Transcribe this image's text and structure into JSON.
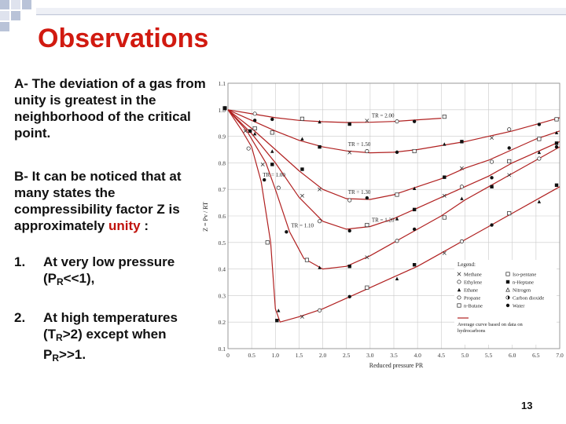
{
  "slide": {
    "title": "Observations",
    "para_a": "A- The deviation of a gas from unity is greatest in the neighborhood of the critical point.",
    "para_b_main": "B- It can be noticed that at many states the compressibility factor Z is approximately",
    "para_b_highlight": "unity",
    "para_b_end": ":",
    "item1": {
      "num": "1.",
      "text": "At very low pressure (P",
      "sub": "R",
      "end": "<<1),"
    },
    "item2": {
      "num": "2.",
      "text_a": "At high temperatures (T",
      "sub_a": "R",
      "text_b": ">2) except when P",
      "sub_b": "R",
      "end": ">>1."
    },
    "page_number": "13",
    "colors": {
      "title": "#d11a10",
      "curve": "#b02020",
      "highlight": "#c0120c"
    }
  },
  "chart_data": {
    "type": "scatter",
    "xlabel": "Reduced pressure PR",
    "ylabel": "Z = Pv / RT",
    "xlim": [
      0,
      7.0
    ],
    "ylim": [
      0.1,
      1.1
    ],
    "xticks": [
      "0",
      "0.5",
      "1.0",
      "1.5",
      "2.0",
      "2.5",
      "3.0",
      "3.5",
      "4.0",
      "4.5",
      "5.0",
      "5.5",
      "6.0",
      "6.5",
      "7.0"
    ],
    "yticks": [
      "0.1",
      "0.2",
      "0.3",
      "0.4",
      "0.5",
      "0.6",
      "0.7",
      "0.8",
      "0.9",
      "1.0",
      "1.1"
    ],
    "curves": [
      {
        "label": "TR = 2.00",
        "points": [
          [
            0,
            1.0
          ],
          [
            0.5,
            0.985
          ],
          [
            1,
            0.97
          ],
          [
            1.5,
            0.96
          ],
          [
            2,
            0.955
          ],
          [
            2.5,
            0.952
          ],
          [
            3,
            0.953
          ],
          [
            3.5,
            0.956
          ],
          [
            4,
            0.962
          ],
          [
            4.5,
            0.968
          ]
        ]
      },
      {
        "label": "TR = 1.50",
        "points": [
          [
            0,
            1.0
          ],
          [
            0.5,
            0.96
          ],
          [
            1,
            0.92
          ],
          [
            1.5,
            0.885
          ],
          [
            2,
            0.86
          ],
          [
            2.5,
            0.845
          ],
          [
            3,
            0.838
          ],
          [
            3.5,
            0.84
          ],
          [
            4,
            0.85
          ],
          [
            4.5,
            0.865
          ],
          [
            5,
            0.88
          ],
          [
            5.5,
            0.9
          ],
          [
            6,
            0.92
          ],
          [
            6.5,
            0.945
          ],
          [
            7,
            0.97
          ]
        ]
      },
      {
        "label": "TR = 1.30",
        "points": [
          [
            0,
            1.0
          ],
          [
            0.5,
            0.93
          ],
          [
            1,
            0.85
          ],
          [
            1.5,
            0.77
          ],
          [
            2,
            0.7
          ],
          [
            2.5,
            0.665
          ],
          [
            3,
            0.662
          ],
          [
            3.5,
            0.68
          ],
          [
            4,
            0.71
          ],
          [
            4.5,
            0.74
          ],
          [
            5,
            0.78
          ],
          [
            5.5,
            0.81
          ],
          [
            6,
            0.85
          ],
          [
            6.5,
            0.89
          ],
          [
            7,
            0.92
          ]
        ]
      },
      {
        "label": "TR = 1.20",
        "points": [
          [
            0,
            1.0
          ],
          [
            0.5,
            0.91
          ],
          [
            1,
            0.8
          ],
          [
            1.5,
            0.67
          ],
          [
            2,
            0.58
          ],
          [
            2.5,
            0.55
          ],
          [
            3,
            0.56
          ],
          [
            3.5,
            0.59
          ],
          [
            4,
            0.63
          ],
          [
            4.5,
            0.67
          ],
          [
            5,
            0.71
          ],
          [
            5.5,
            0.75
          ],
          [
            6,
            0.8
          ],
          [
            6.5,
            0.84
          ],
          [
            7,
            0.88
          ]
        ]
      },
      {
        "label": "TR = 1.10",
        "points": [
          [
            0,
            1.0
          ],
          [
            0.4,
            0.92
          ],
          [
            0.8,
            0.8
          ],
          [
            1,
            0.7
          ],
          [
            1.3,
            0.54
          ],
          [
            1.6,
            0.44
          ],
          [
            2,
            0.4
          ],
          [
            2.5,
            0.41
          ],
          [
            3,
            0.45
          ],
          [
            3.5,
            0.5
          ],
          [
            4,
            0.55
          ],
          [
            4.5,
            0.6
          ],
          [
            5,
            0.66
          ],
          [
            5.5,
            0.71
          ],
          [
            6,
            0.76
          ],
          [
            6.5,
            0.81
          ],
          [
            7,
            0.86
          ]
        ]
      },
      {
        "label": "TR = 1.00",
        "points": [
          [
            0,
            1.0
          ],
          [
            0.3,
            0.92
          ],
          [
            0.5,
            0.86
          ],
          [
            0.7,
            0.73
          ],
          [
            0.9,
            0.5
          ],
          [
            1,
            0.25
          ],
          [
            1.1,
            0.2
          ],
          [
            1.5,
            0.22
          ],
          [
            2,
            0.25
          ],
          [
            2.5,
            0.29
          ],
          [
            3,
            0.33
          ],
          [
            3.5,
            0.37
          ],
          [
            4,
            0.41
          ],
          [
            4.5,
            0.46
          ],
          [
            5,
            0.51
          ],
          [
            5.5,
            0.56
          ],
          [
            6,
            0.61
          ],
          [
            6.5,
            0.66
          ],
          [
            7,
            0.71
          ]
        ]
      }
    ],
    "legend_title": "Legend:",
    "legend": [
      {
        "marker": "x",
        "name": "Methane"
      },
      {
        "marker": "square",
        "name": "Iso-pentane"
      },
      {
        "marker": "circle-open",
        "name": "Ethylene"
      },
      {
        "marker": "square-filled",
        "name": "n-Heptane"
      },
      {
        "marker": "triangle-filled",
        "name": "Ethane"
      },
      {
        "marker": "triangle-open",
        "name": "Nitrogen"
      },
      {
        "marker": "circle-open",
        "name": "Propane"
      },
      {
        "marker": "circle-half",
        "name": "Carbon dioxide"
      },
      {
        "marker": "square-open",
        "name": "n-Butane"
      },
      {
        "marker": "circle-filled",
        "name": "Water"
      }
    ],
    "legend_note": [
      "Average curve based on data on",
      "hydrocarbons"
    ],
    "legend_position": "bottom-right"
  }
}
